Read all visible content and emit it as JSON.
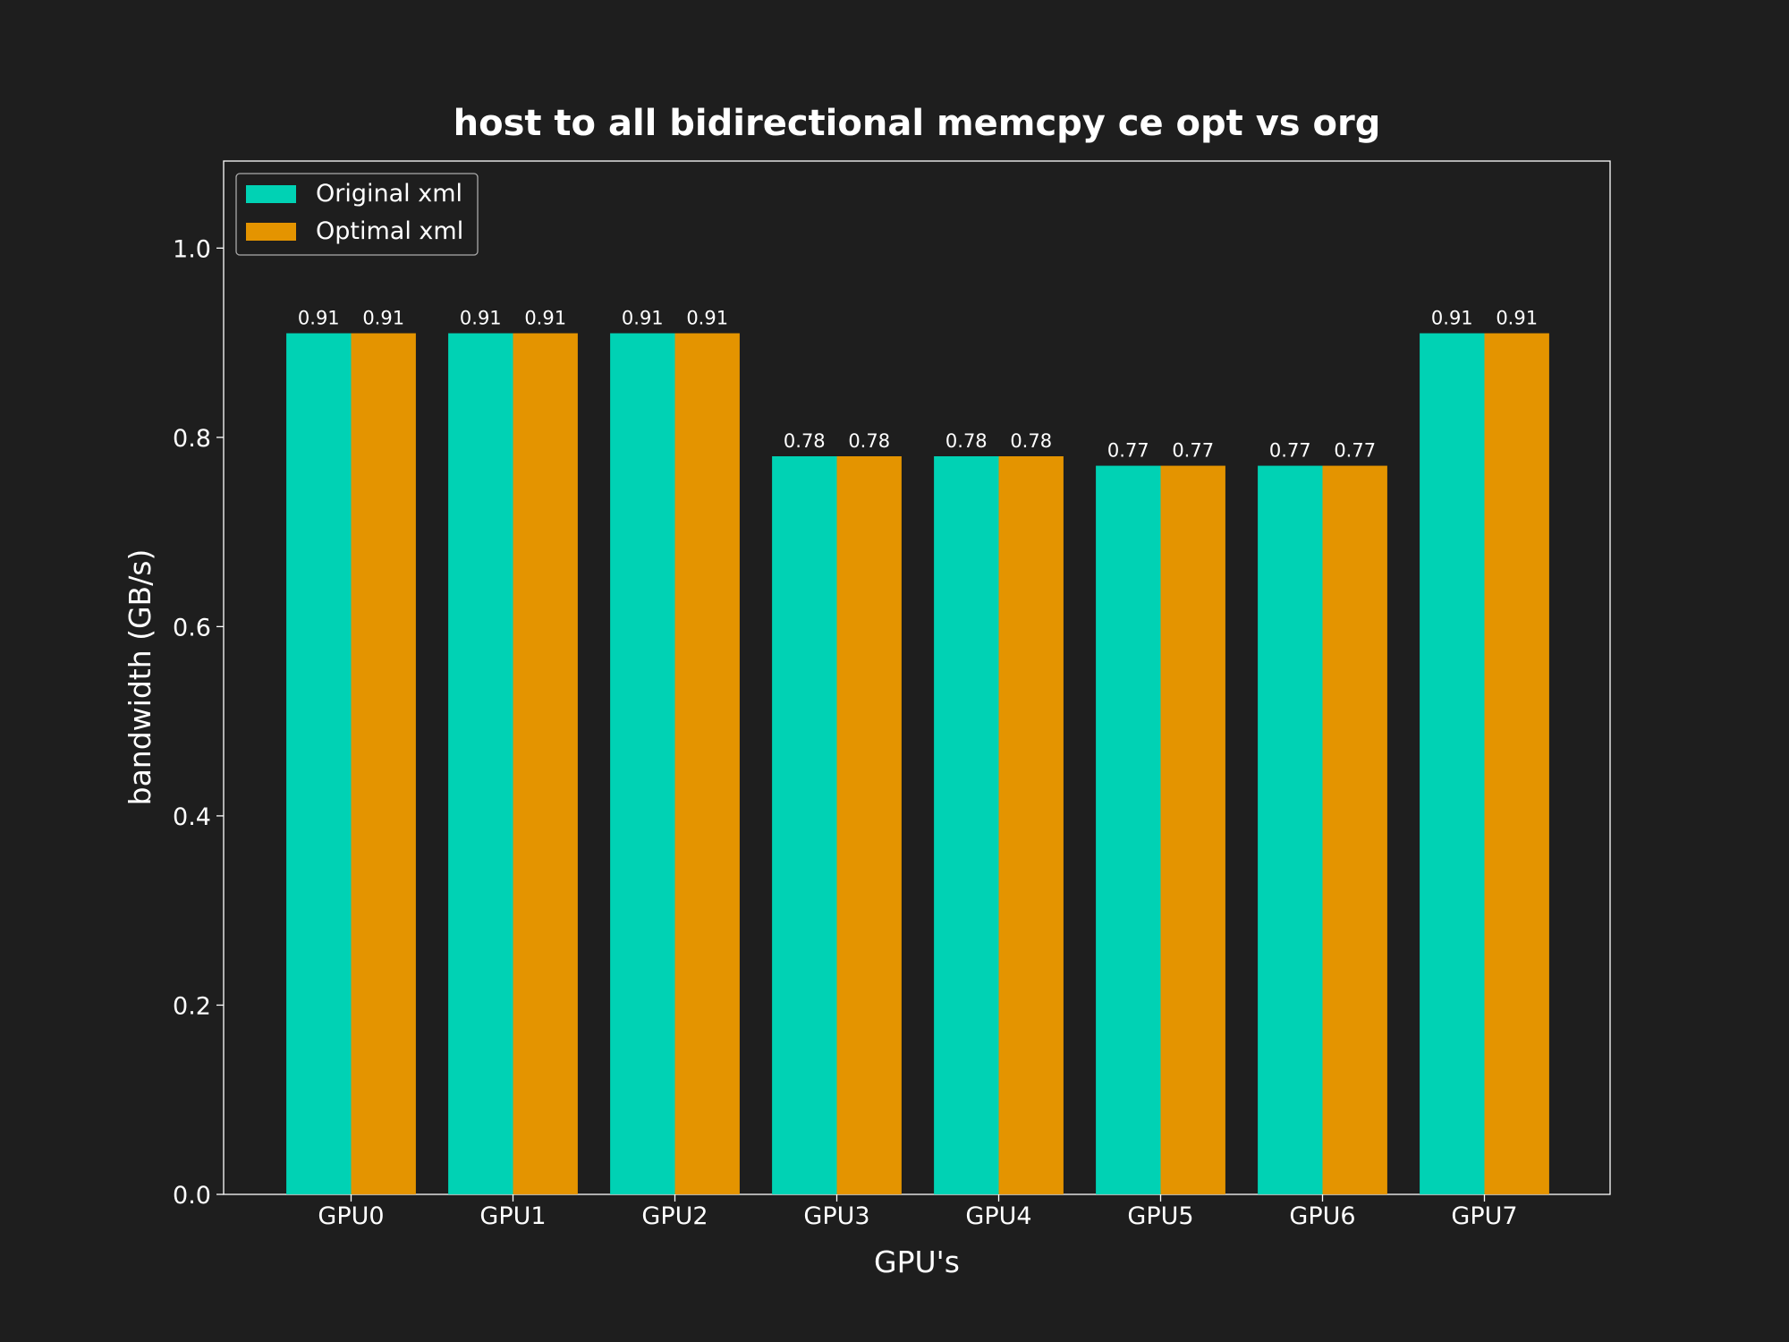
{
  "colors": {
    "background": "#1e1e1e",
    "text": "#ffffff",
    "axis": "#ffffff",
    "original": "#00d2b4",
    "optimal": "#e49400"
  },
  "chart_data": {
    "type": "bar",
    "title": "host to all bidirectional memcpy ce opt vs org",
    "xlabel": "GPU's",
    "ylabel": "bandwidth (GB/s)",
    "categories": [
      "GPU0",
      "GPU1",
      "GPU2",
      "GPU3",
      "GPU4",
      "GPU5",
      "GPU6",
      "GPU7"
    ],
    "series": [
      {
        "name": "Original xml",
        "color": "#00d2b4",
        "values": [
          0.91,
          0.91,
          0.91,
          0.78,
          0.78,
          0.77,
          0.77,
          0.91
        ]
      },
      {
        "name": "Optimal xml",
        "color": "#e49400",
        "values": [
          0.91,
          0.91,
          0.91,
          0.78,
          0.78,
          0.77,
          0.77,
          0.91
        ]
      }
    ],
    "ylim": [
      0,
      1.092
    ],
    "yticks": [
      0.0,
      0.2,
      0.4,
      0.6,
      0.8,
      1.0
    ],
    "ytick_labels": [
      "0.0",
      "0.2",
      "0.4",
      "0.6",
      "0.8",
      "1.0"
    ],
    "legend_position": "top-left",
    "grid": false,
    "data_labels": true
  }
}
